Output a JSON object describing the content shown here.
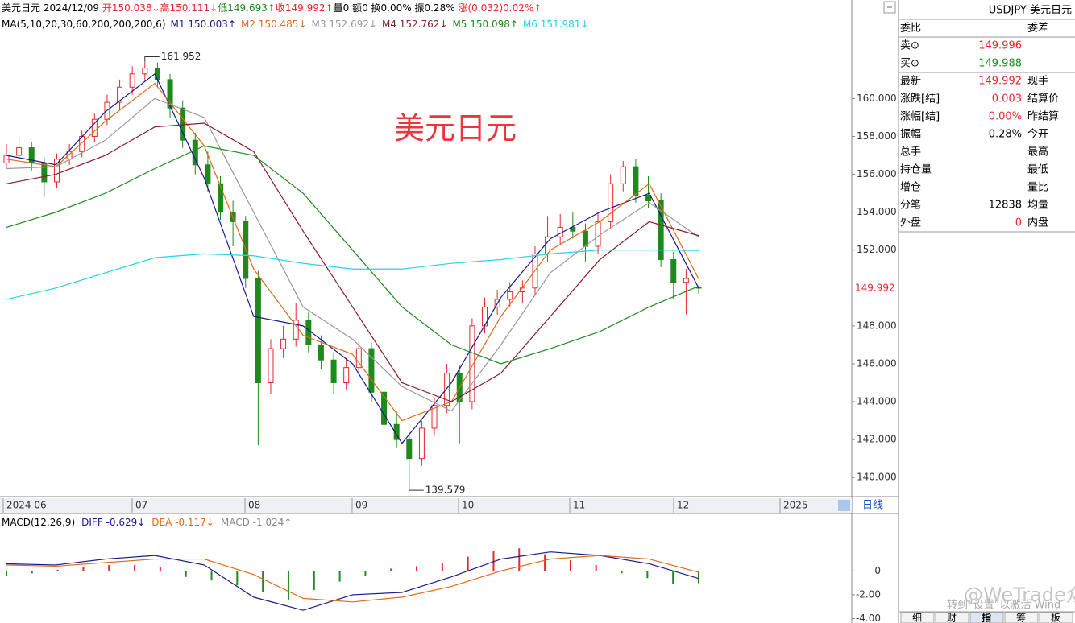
{
  "header": [
    "美元日元",
    "2024/12/09",
    "开150.038↓",
    "高150.111↓",
    "低149.693↑",
    "收149.992↑",
    "量0",
    "额0",
    "换0.00%",
    "振0.28%",
    "涨(0.032)0.02%↑"
  ],
  "big_title": "美元日元",
  "ma": {
    "label": "MA(5,10,20,30,60,200,200,200,6)",
    "series": [
      {
        "label": "M1 150.003↑",
        "color": "#1a1a8c",
        "values": [
          157.0,
          156.5,
          159.3,
          161.3,
          155.8,
          148.5,
          148.0,
          146.0,
          141.8,
          145.0,
          149.5,
          152.6,
          154.0,
          155.0,
          150.003
        ]
      },
      {
        "label": "M2 150.485↓",
        "color": "#e06a1b",
        "values": [
          156.8,
          156.4,
          158.8,
          160.8,
          157.5,
          151.0,
          147.5,
          146.5,
          143.0,
          144.0,
          148.5,
          152.0,
          153.5,
          155.5,
          150.485
        ]
      },
      {
        "label": "M3 152.692↓",
        "color": "#999999",
        "values": [
          156.3,
          156.4,
          157.8,
          160.0,
          159.0,
          154.0,
          149.0,
          147.3,
          144.8,
          143.5,
          147.0,
          150.8,
          152.8,
          154.5,
          152.692
        ]
      },
      {
        "label": "M4 152.762↓",
        "color": "#8b1a2b",
        "values": [
          155.5,
          156.0,
          157.0,
          158.5,
          158.7,
          157.2,
          153.0,
          149.0,
          145.0,
          144.0,
          145.5,
          148.5,
          151.5,
          153.5,
          152.762
        ]
      },
      {
        "label": "M5 150.098↑",
        "color": "#1e8a1e",
        "values": [
          153.2,
          154.0,
          155.0,
          156.3,
          157.5,
          157.0,
          155.0,
          152.0,
          149.0,
          147.0,
          146.0,
          146.8,
          147.7,
          149.0,
          150.098
        ]
      },
      {
        "label": "M6 151.981↓",
        "color": "#22d3e6",
        "values": [
          149.4,
          150.0,
          150.8,
          151.6,
          151.8,
          151.7,
          151.3,
          151.0,
          151.0,
          151.3,
          151.5,
          151.8,
          152.0,
          152.0,
          151.981
        ]
      }
    ]
  },
  "price": {
    "ylim": [
      139.2,
      163.5
    ],
    "yticks": [
      {
        "value": 160,
        "label": "160.000"
      },
      {
        "value": 158,
        "label": "158.000"
      },
      {
        "value": 156,
        "label": "156.000"
      },
      {
        "value": 154,
        "label": "154.000"
      },
      {
        "value": 152,
        "label": "152.000"
      },
      {
        "value": 148,
        "label": "148.000"
      },
      {
        "value": 146,
        "label": "146.000"
      },
      {
        "value": 144,
        "label": "144.000"
      },
      {
        "value": 142,
        "label": "142.000"
      },
      {
        "value": 140,
        "label": "140.000"
      }
    ],
    "last": {
      "value": 149.992,
      "label": "149.992"
    },
    "high_label": {
      "value": 161.952,
      "label": "161.952"
    },
    "low_label": {
      "value": 139.579,
      "label": "139.579"
    },
    "up_color": "#e8262d",
    "down_color": "#1e8a1e",
    "candles": [
      [
        156.6,
        157.6,
        156.3,
        157.0
      ],
      [
        157.0,
        157.9,
        156.7,
        157.4
      ],
      [
        157.4,
        157.7,
        156.2,
        156.6
      ],
      [
        156.6,
        156.9,
        154.8,
        155.6
      ],
      [
        155.6,
        157.1,
        155.3,
        156.8
      ],
      [
        156.8,
        157.6,
        156.5,
        157.2
      ],
      [
        157.2,
        158.3,
        156.9,
        158.0
      ],
      [
        158.0,
        159.2,
        157.7,
        158.9
      ],
      [
        158.9,
        160.2,
        158.6,
        159.8
      ],
      [
        159.8,
        161.0,
        159.4,
        160.6
      ],
      [
        160.6,
        161.7,
        160.2,
        161.3
      ],
      [
        161.3,
        161.952,
        160.9,
        161.6
      ],
      [
        161.6,
        161.9,
        160.6,
        161.0
      ],
      [
        161.0,
        161.3,
        159.0,
        159.5
      ],
      [
        159.5,
        159.9,
        157.4,
        157.8
      ],
      [
        157.8,
        158.2,
        156.0,
        156.5
      ],
      [
        156.5,
        157.2,
        155.1,
        155.5
      ],
      [
        155.5,
        155.9,
        153.6,
        154.0
      ],
      [
        154.0,
        154.6,
        152.2,
        153.5
      ],
      [
        153.5,
        153.8,
        150.0,
        150.5
      ],
      [
        150.5,
        150.9,
        141.7,
        145.0
      ],
      [
        145.0,
        147.3,
        144.4,
        146.8
      ],
      [
        146.8,
        148.0,
        146.3,
        147.3
      ],
      [
        147.3,
        149.2,
        146.9,
        148.3
      ],
      [
        148.3,
        148.7,
        146.6,
        147.0
      ],
      [
        147.0,
        147.5,
        145.7,
        146.2
      ],
      [
        146.2,
        146.6,
        144.4,
        145.0
      ],
      [
        145.0,
        146.3,
        144.6,
        145.8
      ],
      [
        145.8,
        147.2,
        145.4,
        146.8
      ],
      [
        146.8,
        147.1,
        144.0,
        144.5
      ],
      [
        144.5,
        144.9,
        142.3,
        142.8
      ],
      [
        142.8,
        143.5,
        141.6,
        142.0
      ],
      [
        142.0,
        142.4,
        139.579,
        141.0
      ],
      [
        141.0,
        143.0,
        140.6,
        142.6
      ],
      [
        142.6,
        144.2,
        142.2,
        143.8
      ],
      [
        143.8,
        146.0,
        143.4,
        145.5
      ],
      [
        145.5,
        145.9,
        141.8,
        144.0
      ],
      [
        144.0,
        148.4,
        143.6,
        148.0
      ],
      [
        148.0,
        149.5,
        147.6,
        149.0
      ],
      [
        149.0,
        149.9,
        148.6,
        149.4
      ],
      [
        149.4,
        150.3,
        149.0,
        149.8
      ],
      [
        149.8,
        150.4,
        149.2,
        150.0
      ],
      [
        150.0,
        152.2,
        149.6,
        151.8
      ],
      [
        151.8,
        153.8,
        151.4,
        152.7
      ],
      [
        152.7,
        153.9,
        152.3,
        153.2
      ],
      [
        153.2,
        154.0,
        152.6,
        153.0
      ],
      [
        153.0,
        153.4,
        151.4,
        152.2
      ],
      [
        152.2,
        154.0,
        151.8,
        153.5
      ],
      [
        153.5,
        156.0,
        153.1,
        155.5
      ],
      [
        155.5,
        156.7,
        155.1,
        156.4
      ],
      [
        156.4,
        156.8,
        154.5,
        154.9
      ],
      [
        154.9,
        155.9,
        154.2,
        154.6
      ],
      [
        154.6,
        155.0,
        151.1,
        151.5
      ],
      [
        151.5,
        151.9,
        149.4,
        150.3
      ],
      [
        150.3,
        151.0,
        148.6,
        150.5
      ],
      [
        150.038,
        150.111,
        149.693,
        149.992
      ]
    ]
  },
  "dates": [
    "2024 06",
    "07",
    "08",
    "09",
    "10",
    "11",
    "12",
    "2025"
  ],
  "period": "日线",
  "macd": {
    "label": "MACD(12,26,9)",
    "ylim": [
      -4.1,
      3.2
    ],
    "yticks": [
      0,
      {
        "value": -2,
        "label": "-2.00"
      },
      {
        "value": -4,
        "label": "-4.00"
      }
    ],
    "diff": {
      "label": "DIFF -0.629↓",
      "color": "#1a1a8c",
      "values": [
        0.6,
        0.5,
        1.0,
        1.3,
        0.5,
        -2.2,
        -3.3,
        -2.0,
        -1.8,
        -0.5,
        1.0,
        1.6,
        1.3,
        0.6,
        -0.629
      ]
    },
    "dea": {
      "label": "DEA -0.117↓",
      "color": "#e06a1b",
      "values": [
        0.5,
        0.4,
        0.7,
        1.0,
        1.0,
        -0.3,
        -2.3,
        -2.6,
        -2.2,
        -1.3,
        0.0,
        1.0,
        1.3,
        1.0,
        -0.117
      ]
    },
    "hist": {
      "label": "MACD -1.024↑",
      "values": [
        -0.4,
        -0.2,
        0.1,
        0.3,
        0.5,
        0.5,
        0.3,
        -0.5,
        -0.8,
        -1.2,
        -1.8,
        -2.4,
        -1.6,
        -0.9,
        -0.4,
        0.2,
        0.4,
        0.7,
        1.2,
        1.7,
        1.9,
        1.4,
        0.9,
        0.5,
        -0.2,
        -0.6,
        -1.1,
        -1.024
      ]
    }
  },
  "panel": {
    "title": "USDJPY 美元日元",
    "rows": [
      {
        "label": "委比",
        "label2": "委差"
      },
      {
        "label": "卖⊙",
        "value": "149.996",
        "color": "#e8262d"
      },
      {
        "label": "买⊙",
        "value": "149.988",
        "color": "#1e8a1e"
      },
      {
        "label": "最新",
        "value": "149.992",
        "color": "#e8262d",
        "label2": "现手"
      },
      {
        "label": "涨跌[结]",
        "value": "0.003",
        "color": "#e8262d",
        "label2": "结算价"
      },
      {
        "label": "涨幅[结]",
        "value": "0.00%",
        "color": "#e8262d",
        "label2": "昨结算"
      },
      {
        "label": "振幅",
        "value": "0.28%",
        "color": "#000000",
        "label2": "今开"
      },
      {
        "label": "总手",
        "label2": "最高"
      },
      {
        "label": "持仓量",
        "label2": "最低"
      },
      {
        "label": "增仓",
        "label2": "量比"
      },
      {
        "label": "分笔",
        "value": "12838",
        "color": "#000000",
        "label2": "均量"
      },
      {
        "label": "外盘",
        "value": "0",
        "color": "#e8262d",
        "label2": "内盘"
      }
    ]
  },
  "tabs": [
    "细",
    "财",
    "指",
    "筹",
    "板"
  ],
  "watermark": "@WeTrade众汇官方",
  "activation": "转到“设置”以激活 Wind"
}
